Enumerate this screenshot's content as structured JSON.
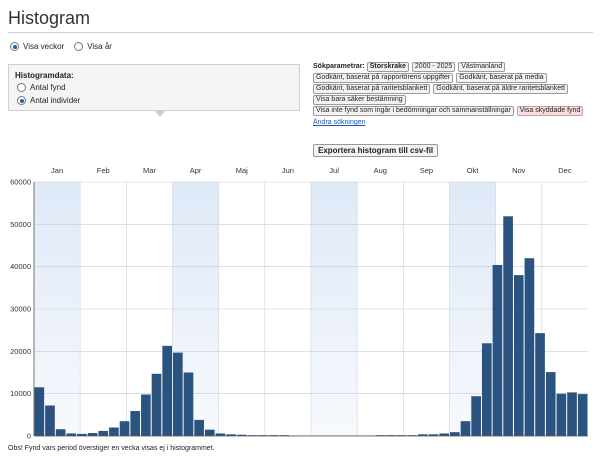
{
  "header": {
    "title": "Histogram"
  },
  "view_toggle": {
    "options": [
      "Visa veckor",
      "Visa år"
    ],
    "selected": 0
  },
  "histogram_data": {
    "heading": "Histogramdata:",
    "options": [
      "Antal fynd",
      "Antal individer"
    ],
    "selected": 1
  },
  "search_params": {
    "label": "Sökparametrar:",
    "chips": [
      {
        "text": "Storskrake",
        "style": "sel"
      },
      {
        "text": "2000 - 2025",
        "style": ""
      },
      {
        "text": "Västmanland",
        "style": ""
      },
      {
        "text": "Godkänt, baserat på rapportörens uppgifter",
        "style": ""
      },
      {
        "text": "Godkänt, baserat på media",
        "style": ""
      },
      {
        "text": "Godkänt, baserat på raritetsblankett",
        "style": ""
      },
      {
        "text": "Godkänt, baserat på äldre raritetsblankett",
        "style": ""
      },
      {
        "text": "Visa bara säker bestämning",
        "style": ""
      },
      {
        "text": "Visa inte fynd som ingår i bedömningar och sammanställningar",
        "style": ""
      },
      {
        "text": "Visa skyddade fynd",
        "style": "alert"
      }
    ],
    "change_link": "Ändra sökningen"
  },
  "export_button": "Exportera histogram till csv-fil",
  "chart_data": {
    "type": "bar",
    "months": [
      "Jan",
      "Feb",
      "Mar",
      "Apr",
      "Maj",
      "Jun",
      "Jul",
      "Aug",
      "Sep",
      "Okt",
      "Nov",
      "Dec"
    ],
    "ylim": [
      0,
      60000
    ],
    "yticks": [
      0,
      10000,
      20000,
      30000,
      40000,
      50000,
      60000
    ],
    "grid": true,
    "bar_color": "#2b5380",
    "values": [
      11500,
      7200,
      1600,
      600,
      500,
      700,
      1200,
      2000,
      3500,
      5900,
      9800,
      14700,
      21300,
      19700,
      15000,
      3800,
      1500,
      600,
      400,
      300,
      200,
      200,
      200,
      200,
      100,
      100,
      100,
      100,
      100,
      100,
      100,
      100,
      200,
      200,
      200,
      200,
      400,
      400,
      600,
      900,
      3500,
      9400,
      21900,
      40400,
      51900,
      38000,
      42000,
      24300,
      15100,
      10000,
      10300,
      9900
    ]
  },
  "footnote": "Obs! Fynd vars period överstiger en vecka visas ej i histogrammet."
}
